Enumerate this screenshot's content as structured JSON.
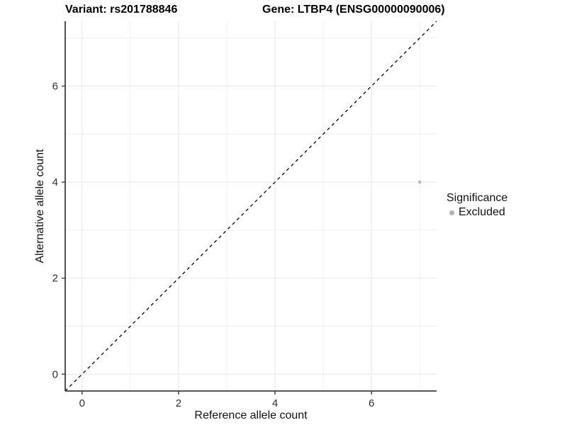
{
  "titles": {
    "variant": "Variant: rs201788846",
    "gene": "Gene: LTBP4 (ENSG00000090006)"
  },
  "axes": {
    "x_label": "Reference allele count",
    "y_label": "Alternative allele count"
  },
  "legend": {
    "title": "Significance",
    "items": [
      {
        "label": "Excluded",
        "color": "#b3b3b3"
      }
    ]
  },
  "colors": {
    "background": "#ffffff",
    "axis_line": "#3c3c3c",
    "tick_text": "#303030",
    "grid_major": "#e7e7e7",
    "grid_minor": "#f1f1f1",
    "reference_line": "#000000",
    "point": "#b3b3b3"
  },
  "chart_data": {
    "type": "scatter",
    "title": "Variant: rs201788846   Gene: LTBP4 (ENSG00000090006)",
    "xlabel": "Reference allele count",
    "ylabel": "Alternative allele count",
    "xlim": [
      -0.35,
      7.35
    ],
    "ylim": [
      -0.35,
      7.35
    ],
    "x_ticks": [
      0,
      2,
      4,
      6
    ],
    "y_ticks": [
      0,
      2,
      4,
      6
    ],
    "x_minor_ticks": [
      1,
      3,
      5,
      7
    ],
    "y_minor_ticks": [
      1,
      3,
      5,
      7
    ],
    "grid": true,
    "legend_position": "right",
    "series": [
      {
        "name": "Excluded",
        "color": "#b3b3b3",
        "points": [
          {
            "x": 7,
            "y": 4
          }
        ]
      }
    ],
    "reference_line": {
      "type": "identity",
      "slope": 1,
      "intercept": 0,
      "style": "dashed"
    }
  }
}
